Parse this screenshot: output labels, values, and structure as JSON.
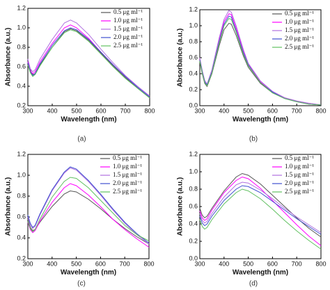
{
  "chart_data": [
    {
      "type": "line",
      "caption": "(a)",
      "xlabel": "Wavelength (nm)",
      "ylabel": "Absorbance (a.u.)",
      "x": [
        300,
        310,
        320,
        330,
        350,
        400,
        450,
        475,
        500,
        550,
        600,
        650,
        700,
        750,
        800
      ],
      "xlim": [
        300,
        800
      ],
      "xticks": [
        300,
        400,
        500,
        600,
        700,
        800
      ],
      "ylim": [
        0.2,
        1.2
      ],
      "yticks": [
        0.2,
        0.4,
        0.6,
        0.8,
        {
          "value": 1,
          "label": "1.0"
        },
        1.2
      ],
      "legend": "upper right",
      "series": [
        {
          "name": "0.5 μg ml⁻¹",
          "color": "#555555",
          "values": [
            0.66,
            0.57,
            0.52,
            0.53,
            0.62,
            0.8,
            0.96,
            0.99,
            0.97,
            0.87,
            0.74,
            0.61,
            0.49,
            0.38,
            0.28
          ]
        },
        {
          "name": "1.0 μg ml⁻¹",
          "color": "#ff00ff",
          "values": [
            0.65,
            0.56,
            0.53,
            0.55,
            0.65,
            0.84,
            1.0,
            1.03,
            1.0,
            0.89,
            0.75,
            0.62,
            0.5,
            0.39,
            0.29
          ]
        },
        {
          "name": "1.5 μg ml⁻¹",
          "color": "#b070e0",
          "values": [
            0.68,
            0.58,
            0.55,
            0.57,
            0.68,
            0.88,
            1.05,
            1.08,
            1.05,
            0.93,
            0.78,
            0.64,
            0.51,
            0.4,
            0.3
          ]
        },
        {
          "name": "2.0 μg ml⁻¹",
          "color": "#4050d0",
          "values": [
            0.64,
            0.55,
            0.51,
            0.53,
            0.63,
            0.82,
            0.97,
            1.0,
            0.98,
            0.88,
            0.75,
            0.62,
            0.5,
            0.39,
            0.29
          ]
        },
        {
          "name": "2.5 μg ml⁻¹",
          "color": "#60c060",
          "values": [
            0.62,
            0.54,
            0.5,
            0.52,
            0.61,
            0.8,
            0.95,
            0.98,
            0.96,
            0.86,
            0.73,
            0.6,
            0.48,
            0.38,
            0.28
          ]
        }
      ]
    },
    {
      "type": "line",
      "caption": "(b)",
      "xlabel": "Wavelength (nm)",
      "ylabel": "Absorbance (a.u.)",
      "x": [
        300,
        310,
        320,
        330,
        350,
        380,
        400,
        420,
        430,
        450,
        480,
        500,
        550,
        600,
        650,
        700,
        750,
        800
      ],
      "xlim": [
        300,
        800
      ],
      "xticks": [
        300,
        400,
        500,
        600,
        700,
        800
      ],
      "ylim": [
        0,
        1.2
      ],
      "yticks": [
        {
          "value": 0,
          "label": "0.0"
        },
        0.2,
        0.4,
        0.6,
        0.8,
        {
          "value": 1,
          "label": "1.0"
        },
        1.2
      ],
      "legend": "upper right",
      "series": [
        {
          "name": "0.5 μg ml⁻¹",
          "color": "#555555",
          "values": [
            0.55,
            0.4,
            0.28,
            0.24,
            0.4,
            0.75,
            0.95,
            1.03,
            1.02,
            0.88,
            0.62,
            0.48,
            0.28,
            0.16,
            0.09,
            0.05,
            0.02,
            0.01
          ]
        },
        {
          "name": "1.0 μg ml⁻¹",
          "color": "#ff00ff",
          "values": [
            0.58,
            0.42,
            0.3,
            0.26,
            0.43,
            0.82,
            1.05,
            1.15,
            1.14,
            0.97,
            0.68,
            0.52,
            0.3,
            0.17,
            0.1,
            0.05,
            0.03,
            0.01
          ]
        },
        {
          "name": "1.5 μg ml⁻¹",
          "color": "#b070e0",
          "values": [
            0.6,
            0.44,
            0.32,
            0.27,
            0.45,
            0.85,
            1.08,
            1.19,
            1.17,
            1.0,
            0.7,
            0.53,
            0.31,
            0.18,
            0.1,
            0.06,
            0.03,
            0.01
          ]
        },
        {
          "name": "2.0 μg ml⁻¹",
          "color": "#4050d0",
          "values": [
            0.57,
            0.42,
            0.3,
            0.26,
            0.42,
            0.8,
            1.02,
            1.12,
            1.11,
            0.94,
            0.66,
            0.51,
            0.29,
            0.17,
            0.09,
            0.05,
            0.02,
            0.01
          ]
        },
        {
          "name": "2.5 μg ml⁻¹",
          "color": "#60c060",
          "values": [
            0.56,
            0.41,
            0.29,
            0.25,
            0.41,
            0.78,
            1.0,
            1.09,
            1.08,
            0.92,
            0.64,
            0.5,
            0.29,
            0.16,
            0.09,
            0.05,
            0.02,
            0.01
          ]
        }
      ]
    },
    {
      "type": "line",
      "caption": "(c)",
      "xlabel": "Wavelength (nm)",
      "ylabel": "Absorbance (a.u.)",
      "x": [
        300,
        310,
        320,
        330,
        350,
        400,
        450,
        475,
        500,
        550,
        600,
        650,
        700,
        750,
        800
      ],
      "xlim": [
        300,
        800
      ],
      "xticks": [
        300,
        400,
        500,
        600,
        700,
        800
      ],
      "ylim": [
        0.2,
        1.2
      ],
      "yticks": [
        0.2,
        0.4,
        0.6,
        0.8,
        {
          "value": 1,
          "label": "1.0"
        },
        1.2
      ],
      "legend": "upper right",
      "series": [
        {
          "name": "0.5 μg ml⁻¹",
          "color": "#555555",
          "values": [
            0.58,
            0.5,
            0.47,
            0.48,
            0.55,
            0.7,
            0.82,
            0.85,
            0.84,
            0.77,
            0.68,
            0.58,
            0.49,
            0.41,
            0.34
          ]
        },
        {
          "name": "1.0 μg ml⁻¹",
          "color": "#ff00ff",
          "values": [
            0.55,
            0.48,
            0.45,
            0.47,
            0.56,
            0.74,
            0.88,
            0.92,
            0.9,
            0.81,
            0.7,
            0.58,
            0.48,
            0.39,
            0.31
          ]
        },
        {
          "name": "1.5 μg ml⁻¹",
          "color": "#b070e0",
          "values": [
            0.6,
            0.52,
            0.49,
            0.51,
            0.62,
            0.85,
            1.02,
            1.07,
            1.05,
            0.94,
            0.81,
            0.67,
            0.54,
            0.43,
            0.34
          ]
        },
        {
          "name": "2.0 μg ml⁻¹",
          "color": "#4050d0",
          "values": [
            0.62,
            0.54,
            0.5,
            0.52,
            0.63,
            0.86,
            1.03,
            1.08,
            1.06,
            0.95,
            0.82,
            0.68,
            0.55,
            0.44,
            0.35
          ]
        },
        {
          "name": "2.5 μg ml⁻¹",
          "color": "#60c060",
          "values": [
            0.56,
            0.49,
            0.46,
            0.48,
            0.58,
            0.79,
            0.94,
            0.98,
            0.97,
            0.88,
            0.76,
            0.64,
            0.52,
            0.43,
            0.37
          ]
        }
      ]
    },
    {
      "type": "line",
      "caption": "(d)",
      "xlabel": "Wavelength (nm)",
      "ylabel": "Absorbance (a.u.)",
      "x": [
        300,
        310,
        320,
        330,
        350,
        400,
        450,
        475,
        500,
        550,
        600,
        650,
        700,
        750,
        800
      ],
      "xlim": [
        300,
        800
      ],
      "xticks": [
        300,
        400,
        500,
        600,
        700,
        800
      ],
      "ylim": [
        0,
        1.2
      ],
      "yticks": [
        {
          "value": 0,
          "label": "0.0"
        },
        0.2,
        0.4,
        0.6,
        0.8,
        {
          "value": 1,
          "label": "1.0"
        },
        1.2
      ],
      "legend": "upper right",
      "series": [
        {
          "name": "0.5 μg ml⁻¹",
          "color": "#555555",
          "values": [
            0.58,
            0.5,
            0.47,
            0.49,
            0.58,
            0.78,
            0.94,
            0.98,
            0.96,
            0.86,
            0.73,
            0.6,
            0.47,
            0.35,
            0.25
          ]
        },
        {
          "name": "1.0 μg ml⁻¹",
          "color": "#ff00ff",
          "values": [
            0.55,
            0.47,
            0.44,
            0.46,
            0.56,
            0.76,
            0.9,
            0.94,
            0.92,
            0.81,
            0.67,
            0.53,
            0.39,
            0.26,
            0.15
          ]
        },
        {
          "name": "1.5 μg ml⁻¹",
          "color": "#b070e0",
          "values": [
            0.52,
            0.44,
            0.41,
            0.43,
            0.52,
            0.71,
            0.85,
            0.88,
            0.87,
            0.79,
            0.69,
            0.58,
            0.48,
            0.39,
            0.3
          ]
        },
        {
          "name": "2.0 μg ml⁻¹",
          "color": "#4050d0",
          "values": [
            0.49,
            0.41,
            0.38,
            0.4,
            0.49,
            0.67,
            0.8,
            0.84,
            0.83,
            0.76,
            0.66,
            0.56,
            0.46,
            0.37,
            0.28
          ]
        },
        {
          "name": "2.5 μg ml⁻¹",
          "color": "#60c060",
          "values": [
            0.45,
            0.37,
            0.34,
            0.36,
            0.45,
            0.63,
            0.76,
            0.8,
            0.78,
            0.69,
            0.57,
            0.44,
            0.32,
            0.21,
            0.11
          ]
        }
      ]
    }
  ]
}
